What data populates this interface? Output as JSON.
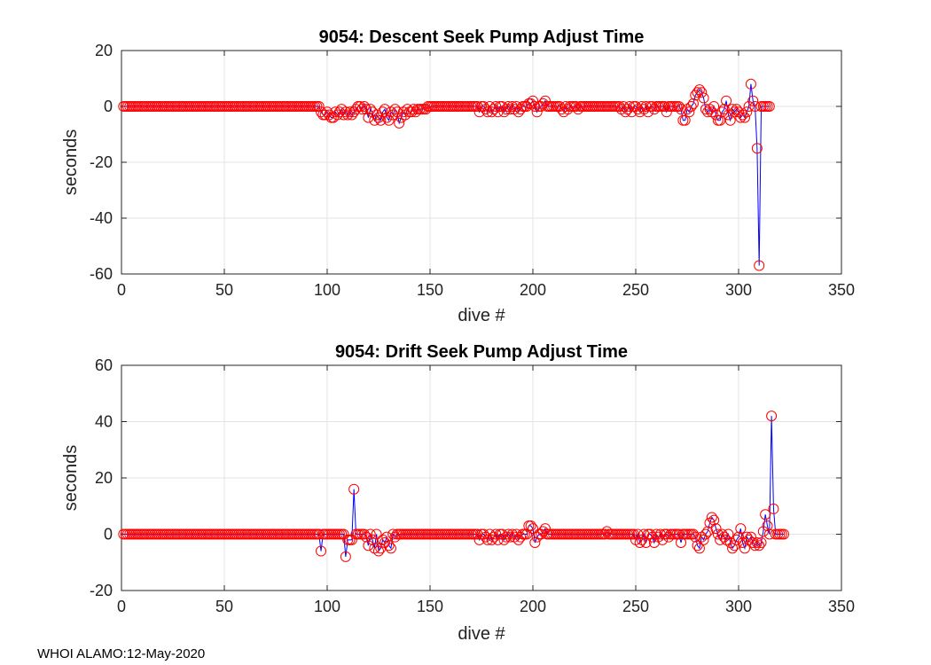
{
  "footer": "WHOI ALAMO:12-May-2020",
  "chart_data": [
    {
      "type": "line",
      "title": "9054: Descent Seek Pump Adjust Time",
      "xlabel": "dive #",
      "ylabel": "seconds",
      "xlim": [
        0,
        350
      ],
      "ylim": [
        -60,
        20
      ],
      "xticks": [
        0,
        50,
        100,
        150,
        200,
        250,
        300,
        350
      ],
      "yticks": [
        -60,
        -40,
        -20,
        0,
        20
      ],
      "grid": true,
      "line_color": "#0000ff",
      "marker_color": "#ff0000",
      "marker": "circle",
      "x_start": 1,
      "y": [
        0,
        0,
        0,
        0,
        0,
        0,
        0,
        0,
        0,
        0,
        0,
        0,
        0,
        0,
        0,
        0,
        0,
        0,
        0,
        0,
        0,
        0,
        0,
        0,
        0,
        0,
        0,
        0,
        0,
        0,
        0,
        0,
        0,
        0,
        0,
        0,
        0,
        0,
        0,
        0,
        0,
        0,
        0,
        0,
        0,
        0,
        0,
        0,
        0,
        0,
        0,
        0,
        0,
        0,
        0,
        0,
        0,
        0,
        0,
        0,
        0,
        0,
        0,
        0,
        0,
        0,
        0,
        0,
        0,
        0,
        0,
        0,
        0,
        0,
        0,
        0,
        0,
        0,
        0,
        0,
        0,
        0,
        0,
        0,
        0,
        0,
        0,
        0,
        0,
        0,
        0,
        0,
        0,
        0,
        0,
        0,
        -2,
        -3,
        -3,
        -2,
        -3,
        -4,
        -4,
        -2,
        -3,
        -2,
        -1,
        -3,
        -2,
        -3,
        -2,
        -3,
        -2,
        -1,
        0,
        0,
        -1,
        0,
        -1,
        -4,
        -1,
        -2,
        -5,
        -3,
        -4,
        -5,
        -2,
        -1,
        -4,
        -5,
        -2,
        -3,
        -1,
        -2,
        -6,
        -4,
        -2,
        -3,
        -1,
        -2,
        -2,
        -1,
        -2,
        -1,
        -1,
        -1,
        -1,
        -1,
        0,
        0,
        0,
        0,
        0,
        0,
        0,
        0,
        0,
        0,
        0,
        0,
        0,
        0,
        0,
        0,
        0,
        0,
        0,
        0,
        0,
        0,
        0,
        0,
        0,
        -2,
        0,
        0,
        -1,
        -2,
        0,
        -2,
        -1,
        0,
        -2,
        0,
        0,
        -2,
        -1,
        0,
        -1,
        0,
        -1,
        0,
        -2,
        -1,
        0,
        0,
        0,
        1,
        1,
        2,
        0,
        -2,
        0,
        0,
        1,
        2,
        0,
        0,
        0,
        0,
        0,
        0,
        0,
        -1,
        -2,
        0,
        -1,
        0,
        0,
        0,
        0,
        -1,
        0,
        0,
        0,
        0,
        0,
        0,
        0,
        0,
        0,
        0,
        0,
        0,
        0,
        0,
        0,
        0,
        0,
        0,
        0,
        0,
        -1,
        0,
        -2,
        -1,
        0,
        -2,
        0,
        0,
        -1,
        -2,
        0,
        -1,
        0,
        -2,
        0,
        0,
        -1,
        0,
        0,
        0,
        0,
        0,
        -2,
        0,
        0,
        0,
        0,
        0,
        0,
        -1,
        -5,
        -5,
        -1,
        -2,
        0,
        1,
        4,
        5,
        6,
        5,
        3,
        -1,
        -2,
        -1,
        -2,
        0,
        -3,
        -5,
        -5,
        -2,
        -1,
        2,
        -3,
        -5,
        -1,
        -2,
        -1,
        -2,
        -4,
        -3,
        -4,
        -2,
        0,
        8,
        2,
        0,
        -15,
        -57,
        0,
        0,
        0,
        0,
        0
      ]
    },
    {
      "type": "line",
      "title": "9054: Drift Seek Pump Adjust Time",
      "xlabel": "dive #",
      "ylabel": "seconds",
      "xlim": [
        0,
        350
      ],
      "ylim": [
        -20,
        60
      ],
      "xticks": [
        0,
        50,
        100,
        150,
        200,
        250,
        300,
        350
      ],
      "yticks": [
        -20,
        0,
        20,
        40,
        60
      ],
      "grid": true,
      "line_color": "#0000ff",
      "marker_color": "#ff0000",
      "marker": "circle",
      "x_start": 1,
      "y": [
        0,
        0,
        0,
        0,
        0,
        0,
        0,
        0,
        0,
        0,
        0,
        0,
        0,
        0,
        0,
        0,
        0,
        0,
        0,
        0,
        0,
        0,
        0,
        0,
        0,
        0,
        0,
        0,
        0,
        0,
        0,
        0,
        0,
        0,
        0,
        0,
        0,
        0,
        0,
        0,
        0,
        0,
        0,
        0,
        0,
        0,
        0,
        0,
        0,
        0,
        0,
        0,
        0,
        0,
        0,
        0,
        0,
        0,
        0,
        0,
        0,
        0,
        0,
        0,
        0,
        0,
        0,
        0,
        0,
        0,
        0,
        0,
        0,
        0,
        0,
        0,
        0,
        0,
        0,
        0,
        0,
        0,
        0,
        0,
        0,
        0,
        0,
        0,
        0,
        0,
        0,
        0,
        0,
        0,
        0,
        0,
        -6,
        0,
        0,
        0,
        0,
        0,
        0,
        0,
        0,
        0,
        0,
        0,
        -8,
        -2,
        -2,
        -2,
        16,
        0,
        0,
        0,
        0,
        0,
        -1,
        -4,
        0,
        -2,
        -5,
        0,
        -6,
        -5,
        -2,
        -3,
        -1,
        -4,
        -5,
        0,
        -1,
        0,
        0,
        0,
        0,
        0,
        0,
        0,
        0,
        0,
        0,
        0,
        0,
        0,
        0,
        0,
        0,
        0,
        0,
        0,
        0,
        0,
        0,
        0,
        0,
        0,
        0,
        0,
        0,
        0,
        0,
        0,
        0,
        0,
        0,
        0,
        0,
        0,
        0,
        0,
        0,
        -2,
        0,
        0,
        -1,
        -2,
        0,
        -2,
        -1,
        0,
        -2,
        0,
        0,
        -2,
        -1,
        0,
        -1,
        0,
        -1,
        0,
        -2,
        -1,
        0,
        0,
        0,
        3,
        3,
        2,
        -3,
        -1,
        0,
        0,
        1,
        2,
        0,
        0,
        0,
        0,
        0,
        0,
        0,
        0,
        0,
        0,
        0,
        0,
        0,
        0,
        0,
        0,
        0,
        0,
        0,
        0,
        0,
        0,
        0,
        0,
        0,
        0,
        0,
        0,
        0,
        1,
        0,
        0,
        0,
        0,
        0,
        0,
        0,
        0,
        0,
        0,
        0,
        0,
        0,
        -2,
        0,
        -3,
        -2,
        0,
        -3,
        0,
        0,
        -1,
        -3,
        0,
        -1,
        0,
        -2,
        0,
        0,
        -1,
        0,
        0,
        0,
        0,
        0,
        -3,
        0,
        0,
        0,
        0,
        0,
        0,
        -1,
        -4,
        -5,
        -1,
        -2,
        0,
        1,
        4,
        6,
        5,
        2,
        0,
        -2,
        0,
        -1,
        -2,
        0,
        -3,
        -5,
        -4,
        -2,
        -1,
        2,
        -3,
        -5,
        -1,
        -2,
        -1,
        -3,
        -4,
        -3,
        -4,
        -3,
        1,
        7,
        3,
        0,
        42,
        9,
        0,
        0,
        0,
        0,
        0
      ]
    }
  ]
}
